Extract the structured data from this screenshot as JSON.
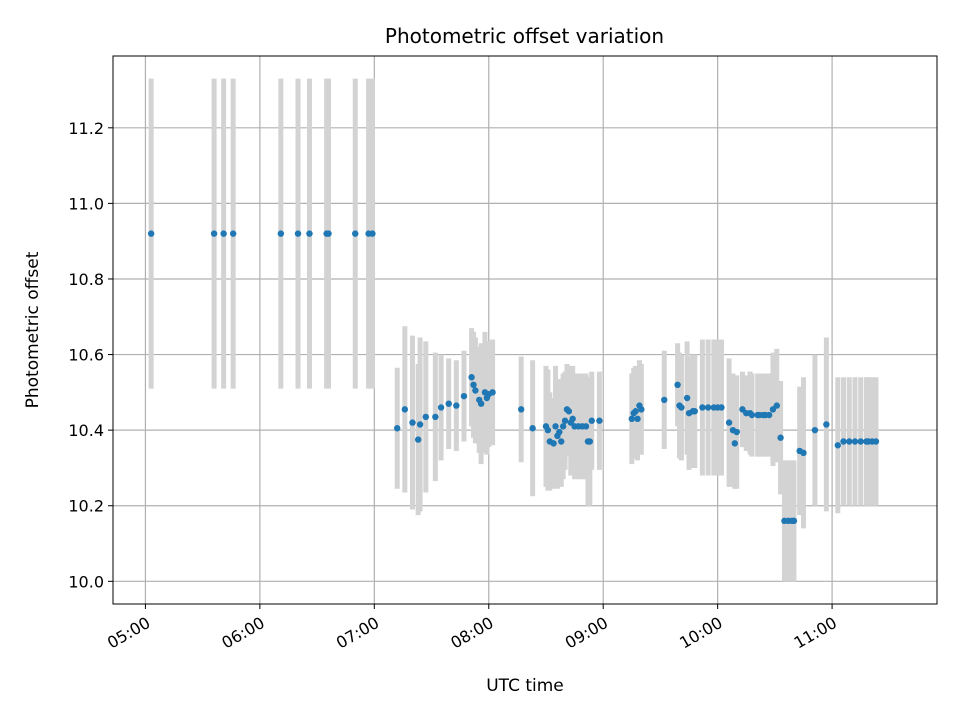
{
  "chart_data": {
    "type": "scatter",
    "title": "Photometric offset variation",
    "xlabel": "UTC time",
    "ylabel": "Photometric offset",
    "x_ticks": [
      "05:00",
      "06:00",
      "07:00",
      "08:00",
      "09:00",
      "10:00",
      "11:00"
    ],
    "y_ticks": [
      "10.0",
      "10.2",
      "10.4",
      "10.6",
      "10.8",
      "11.0",
      "11.2"
    ],
    "xlim": [
      "04:43",
      "11:55"
    ],
    "ylim": [
      9.94,
      11.39
    ],
    "grid": true,
    "legend": "none",
    "colors": {
      "points": "#1f77b4",
      "errorbars": "#d3d3d3",
      "grid": "#b0b0b0"
    },
    "series": [
      {
        "x": [
          "05:03",
          "05:36",
          "05:41",
          "05:46",
          "06:11",
          "06:20",
          "06:26",
          "06:35",
          "06:36",
          "06:50",
          "06:57",
          "06:59",
          "07:12",
          "07:16",
          "07:20",
          "07:23",
          "07:24",
          "07:27",
          "07:32",
          "07:35",
          "07:39",
          "07:43",
          "07:47",
          "07:51",
          "07:52",
          "07:53",
          "07:55",
          "07:56",
          "07:58",
          "07:59",
          "08:00",
          "08:02",
          "08:17",
          "08:23",
          "08:30",
          "08:31",
          "08:32",
          "08:34",
          "08:35",
          "08:36",
          "08:37",
          "08:38",
          "08:39",
          "08:40",
          "08:41",
          "08:42",
          "08:43",
          "08:44",
          "08:45",
          "08:47",
          "08:49",
          "08:51",
          "08:52",
          "08:53",
          "08:54",
          "08:58",
          "09:15",
          "09:16",
          "09:17",
          "09:18",
          "09:19",
          "09:20",
          "09:32",
          "09:39",
          "09:40",
          "09:41",
          "09:44",
          "09:45",
          "09:47",
          "09:48",
          "09:52",
          "09:55",
          "09:58",
          "10:00",
          "10:02",
          "10:06",
          "10:08",
          "10:09",
          "10:10",
          "10:13",
          "10:15",
          "10:17",
          "10:18",
          "10:21",
          "10:22",
          "10:24",
          "10:25",
          "10:27",
          "10:29",
          "10:31",
          "10:33",
          "10:35",
          "10:37",
          "10:39",
          "10:40",
          "10:43",
          "10:45",
          "10:51",
          "10:57",
          "11:03",
          "11:06",
          "11:09",
          "11:12",
          "11:15",
          "11:18",
          "11:19",
          "11:21",
          "11:23"
        ],
        "y": [
          10.92,
          10.92,
          10.92,
          10.92,
          10.92,
          10.92,
          10.92,
          10.92,
          10.92,
          10.92,
          10.92,
          10.92,
          10.405,
          10.455,
          10.42,
          10.375,
          10.415,
          10.435,
          10.435,
          10.46,
          10.47,
          10.465,
          10.49,
          10.54,
          10.52,
          10.505,
          10.48,
          10.47,
          10.5,
          10.485,
          10.495,
          10.5,
          10.455,
          10.405,
          10.41,
          10.4,
          10.37,
          10.365,
          10.41,
          10.385,
          10.395,
          10.37,
          10.41,
          10.425,
          10.455,
          10.45,
          10.42,
          10.43,
          10.41,
          10.41,
          10.41,
          10.41,
          10.37,
          10.37,
          10.425,
          10.425,
          10.43,
          10.445,
          10.45,
          10.43,
          10.465,
          10.455,
          10.48,
          10.52,
          10.465,
          10.46,
          10.485,
          10.445,
          10.45,
          10.45,
          10.46,
          10.46,
          10.46,
          10.46,
          10.46,
          10.42,
          10.4,
          10.365,
          10.395,
          10.455,
          10.445,
          10.445,
          10.44,
          10.44,
          10.44,
          10.44,
          10.44,
          10.44,
          10.455,
          10.465,
          10.38,
          10.16,
          10.16,
          10.16,
          10.16,
          10.345,
          10.34,
          10.4,
          10.415,
          10.36,
          10.37,
          10.37,
          10.37,
          10.37,
          10.37,
          10.37,
          10.37,
          10.37
        ],
        "err": [
          0.41,
          0.41,
          0.41,
          0.41,
          0.41,
          0.41,
          0.41,
          0.41,
          0.41,
          0.41,
          0.41,
          0.41,
          0.16,
          0.22,
          0.23,
          0.2,
          0.23,
          0.2,
          0.17,
          0.14,
          0.12,
          0.12,
          0.12,
          0.13,
          0.14,
          0.14,
          0.14,
          0.16,
          0.16,
          0.15,
          0.14,
          0.14,
          0.14,
          0.18,
          0.16,
          0.16,
          0.13,
          0.12,
          0.16,
          0.14,
          0.14,
          0.12,
          0.14,
          0.13,
          0.12,
          0.12,
          0.14,
          0.14,
          0.14,
          0.14,
          0.14,
          0.14,
          0.17,
          0.17,
          0.13,
          0.13,
          0.12,
          0.12,
          0.12,
          0.11,
          0.12,
          0.12,
          0.13,
          0.11,
          0.14,
          0.14,
          0.15,
          0.15,
          0.15,
          0.15,
          0.18,
          0.18,
          0.18,
          0.18,
          0.18,
          0.17,
          0.15,
          0.12,
          0.15,
          0.1,
          0.1,
          0.11,
          0.11,
          0.11,
          0.11,
          0.11,
          0.11,
          0.11,
          0.15,
          0.15,
          0.15,
          0.16,
          0.16,
          0.16,
          0.16,
          0.17,
          0.2,
          0.2,
          0.23,
          0.18,
          0.17,
          0.17,
          0.17,
          0.17,
          0.17,
          0.17,
          0.17,
          0.17
        ]
      }
    ]
  }
}
